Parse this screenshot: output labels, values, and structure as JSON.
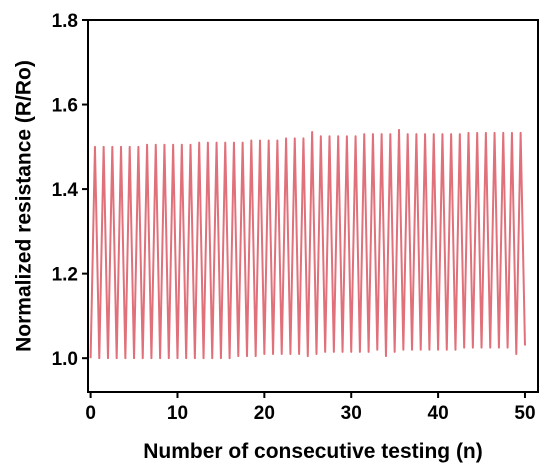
{
  "chart_data": {
    "type": "line",
    "title": "",
    "xlabel": "Number of consecutive testing (n)",
    "ylabel": "Normalized resistance (R/Ro)",
    "xlim": [
      -0.3,
      51.5
    ],
    "ylim": [
      0.92,
      1.8
    ],
    "xticks": [
      0,
      10,
      20,
      30,
      40,
      50
    ],
    "yticks": [
      1.0,
      1.2,
      1.4,
      1.6,
      1.8
    ],
    "grid": false,
    "legend": "none",
    "line_color": "#e0707a",
    "series": [
      {
        "cycles": 50,
        "x_start": 0,
        "x_end": 50,
        "baseline_start": 1.0,
        "baseline_end": 1.025,
        "peak_start": 1.5,
        "peak_end": 1.533,
        "points": [
          [
            0.0,
            1.0
          ],
          [
            0.5,
            1.5
          ],
          [
            1.0,
            1.0
          ],
          [
            1.5,
            1.5
          ],
          [
            2.0,
            1.0
          ],
          [
            2.5,
            1.5
          ],
          [
            3.0,
            1.0
          ],
          [
            3.5,
            1.5
          ],
          [
            4.0,
            1.0
          ],
          [
            4.5,
            1.5
          ],
          [
            5.0,
            1.0
          ],
          [
            5.5,
            1.5
          ],
          [
            6.0,
            1.0
          ],
          [
            6.5,
            1.505
          ],
          [
            7.0,
            1.0
          ],
          [
            7.5,
            1.505
          ],
          [
            8.0,
            1.0
          ],
          [
            8.5,
            1.505
          ],
          [
            9.0,
            1.0
          ],
          [
            9.5,
            1.505
          ],
          [
            10.0,
            1.0
          ],
          [
            10.5,
            1.505
          ],
          [
            11.0,
            1.0
          ],
          [
            11.5,
            1.505
          ],
          [
            12.0,
            1.0
          ],
          [
            12.5,
            1.51
          ],
          [
            13.0,
            1.0
          ],
          [
            13.5,
            1.51
          ],
          [
            14.0,
            1.0
          ],
          [
            14.5,
            1.51
          ],
          [
            15.0,
            1.0
          ],
          [
            15.5,
            1.51
          ],
          [
            16.0,
            1.0
          ],
          [
            16.5,
            1.51
          ],
          [
            17.0,
            1.005
          ],
          [
            17.5,
            1.51
          ],
          [
            18.0,
            1.005
          ],
          [
            18.5,
            1.515
          ],
          [
            19.0,
            1.005
          ],
          [
            19.5,
            1.515
          ],
          [
            20.0,
            1.01
          ],
          [
            20.5,
            1.515
          ],
          [
            21.0,
            1.01
          ],
          [
            21.5,
            1.515
          ],
          [
            22.0,
            1.01
          ],
          [
            22.5,
            1.52
          ],
          [
            23.0,
            1.01
          ],
          [
            23.5,
            1.52
          ],
          [
            24.0,
            1.01
          ],
          [
            24.5,
            1.52
          ],
          [
            25.0,
            1.005
          ],
          [
            25.5,
            1.535
          ],
          [
            26.0,
            1.01
          ],
          [
            26.5,
            1.525
          ],
          [
            27.0,
            1.015
          ],
          [
            27.5,
            1.525
          ],
          [
            28.0,
            1.015
          ],
          [
            28.5,
            1.525
          ],
          [
            29.0,
            1.015
          ],
          [
            29.5,
            1.525
          ],
          [
            30.0,
            1.015
          ],
          [
            30.5,
            1.525
          ],
          [
            31.0,
            1.015
          ],
          [
            31.5,
            1.53
          ],
          [
            32.0,
            1.015
          ],
          [
            32.5,
            1.53
          ],
          [
            33.0,
            1.02
          ],
          [
            33.5,
            1.53
          ],
          [
            34.0,
            1.005
          ],
          [
            34.5,
            1.53
          ],
          [
            35.0,
            1.015
          ],
          [
            35.5,
            1.54
          ],
          [
            36.0,
            1.02
          ],
          [
            36.5,
            1.53
          ],
          [
            37.0,
            1.02
          ],
          [
            37.5,
            1.53
          ],
          [
            38.0,
            1.02
          ],
          [
            38.5,
            1.53
          ],
          [
            39.0,
            1.02
          ],
          [
            39.5,
            1.53
          ],
          [
            40.0,
            1.02
          ],
          [
            40.5,
            1.53
          ],
          [
            41.0,
            1.02
          ],
          [
            41.5,
            1.53
          ],
          [
            42.0,
            1.02
          ],
          [
            42.5,
            1.53
          ],
          [
            43.0,
            1.025
          ],
          [
            43.5,
            1.533
          ],
          [
            44.0,
            1.025
          ],
          [
            44.5,
            1.533
          ],
          [
            45.0,
            1.025
          ],
          [
            45.5,
            1.533
          ],
          [
            46.0,
            1.025
          ],
          [
            46.5,
            1.533
          ],
          [
            47.0,
            1.025
          ],
          [
            47.5,
            1.533
          ],
          [
            48.0,
            1.025
          ],
          [
            48.5,
            1.533
          ],
          [
            49.0,
            1.01
          ],
          [
            49.5,
            1.533
          ],
          [
            50.0,
            1.03
          ]
        ]
      }
    ]
  }
}
